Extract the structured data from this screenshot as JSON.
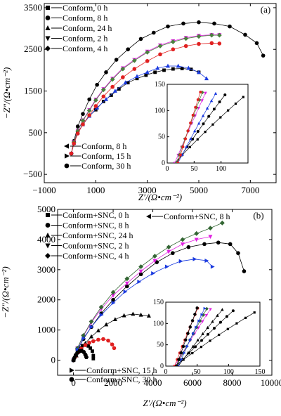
{
  "chart_data": [
    {
      "type": "scatter",
      "panel_label": "(a)",
      "xlabel": "Z′/(Ω•cm⁻²)",
      "ylabel": "−Z″/(Ω•cm⁻²)",
      "xlim": [
        -1000,
        8000
      ],
      "ylim": [
        -700,
        3600
      ],
      "xticks": [
        "−1000",
        "1000",
        "3000",
        "5000",
        "7000"
      ],
      "xtick_values": [
        -1000,
        1000,
        3000,
        5000,
        7000
      ],
      "yticks": [
        "−500",
        "500",
        "1500",
        "2500",
        "3500"
      ],
      "ytick_values": [
        -500,
        500,
        1500,
        2500,
        3500
      ],
      "series": [
        {
          "name": "Conform, 0 h",
          "color": "#000000",
          "marker": "square",
          "x": [
            50,
            150,
            300,
            500,
            750,
            1000,
            1300,
            1600,
            1900,
            2250,
            2600,
            2950,
            3300,
            3650,
            4000,
            4350,
            4700,
            5000
          ],
          "y": [
            0,
            250,
            500,
            700,
            900,
            1050,
            1250,
            1400,
            1550,
            1700,
            1800,
            1880,
            1950,
            2000,
            2030,
            2040,
            2020,
            1950
          ]
        },
        {
          "name": "Conform, 8 h",
          "color": "#000000",
          "marker": "circle",
          "x": [
            50,
            150,
            300,
            500,
            750,
            1050,
            1400,
            1800,
            2250,
            2750,
            3250,
            3800,
            4400,
            5000,
            5600,
            6200,
            6800,
            7250,
            7500
          ],
          "y": [
            0,
            300,
            650,
            950,
            1300,
            1650,
            1950,
            2250,
            2500,
            2750,
            2900,
            3050,
            3120,
            3150,
            3120,
            3050,
            2850,
            2650,
            2350
          ]
        },
        {
          "name": "Conform, 24 h",
          "color": "#1a3adf",
          "marker": "triangle-up",
          "x": [
            50,
            150,
            300,
            500,
            750,
            1050,
            1400,
            1750,
            2150,
            2600,
            3000,
            3400,
            3800,
            4200,
            4600,
            5000,
            5300
          ],
          "y": [
            0,
            250,
            500,
            700,
            900,
            1100,
            1300,
            1500,
            1700,
            1850,
            1950,
            2050,
            2100,
            2100,
            2050,
            1950,
            1800
          ]
        },
        {
          "name": "Conform, 2 h",
          "color": "#e020e0",
          "marker": "triangle-down",
          "x": [
            50,
            150,
            300,
            500,
            750,
            1000,
            1300,
            1650,
            2050,
            2500,
            3000,
            3500,
            4000,
            4500,
            5000,
            5500,
            5800
          ],
          "y": [
            0,
            280,
            550,
            800,
            1050,
            1300,
            1550,
            1800,
            2050,
            2250,
            2450,
            2600,
            2700,
            2780,
            2830,
            2850,
            2850
          ]
        },
        {
          "name": "Conform, 4 h",
          "color": "#4a7f3e",
          "marker": "diamond",
          "x": [
            50,
            150,
            300,
            500,
            750,
            1000,
            1300,
            1650,
            2050,
            2500,
            3000,
            3500,
            4000,
            4500,
            5000,
            5500,
            5800
          ],
          "y": [
            0,
            270,
            540,
            790,
            1030,
            1280,
            1530,
            1780,
            2030,
            2230,
            2430,
            2580,
            2680,
            2760,
            2810,
            2840,
            2840
          ]
        },
        {
          "name": "Conform, 15 h",
          "color": "#e02020",
          "marker": "circle",
          "x": [
            50,
            150,
            300,
            500,
            750,
            1000,
            1300,
            1650,
            2050,
            2500,
            3000,
            3500,
            4000,
            4500,
            5000,
            5500,
            5800
          ],
          "y": [
            0,
            240,
            480,
            700,
            920,
            1140,
            1370,
            1600,
            1830,
            2030,
            2220,
            2380,
            2500,
            2580,
            2630,
            2650,
            2640
          ]
        }
      ],
      "legend_top": [
        "Conform, 0 h",
        "Conform, 8 h",
        "Conform, 24 h",
        "Conform, 2 h",
        "Conform, 4 h"
      ],
      "legend_bottom": [
        "Conform, 8 h",
        "Conform, 15 h",
        "Conform, 30 h"
      ],
      "inset": {
        "xlim": [
          0,
          150
        ],
        "ylim": [
          0,
          150
        ],
        "xticks": [
          "0",
          "50",
          "100"
        ],
        "xtick_values": [
          0,
          50,
          100
        ],
        "yticks": [
          "0",
          "50",
          "100",
          "150"
        ],
        "ytick_values": [
          0,
          50,
          100,
          150
        ]
      }
    },
    {
      "type": "scatter",
      "panel_label": "(b)",
      "xlabel": "Z′/(Ω•cm⁻²)",
      "ylabel": "−Z″/(Ω•cm⁻²)",
      "xlim": [
        -800,
        10000
      ],
      "ylim": [
        -500,
        5000
      ],
      "xticks": [
        "0",
        "2000",
        "4000",
        "6000",
        "8000",
        "10000"
      ],
      "xtick_values": [
        0,
        2000,
        4000,
        6000,
        8000,
        10000
      ],
      "yticks": [
        "0",
        "1000",
        "2000",
        "3000",
        "4000",
        "5000"
      ],
      "ytick_values": [
        0,
        1000,
        2000,
        3000,
        4000,
        5000
      ],
      "series": [
        {
          "name": "Conform+SNC, 0 h",
          "color": "#000000",
          "marker": "square",
          "x": [
            0,
            100,
            200,
            300,
            450,
            600,
            750,
            850,
            950,
            1000,
            1000
          ],
          "y": [
            0,
            150,
            300,
            400,
            480,
            500,
            470,
            400,
            300,
            150,
            50
          ]
        },
        {
          "name": "Conform+SNC, 8 h",
          "color": "#000000",
          "marker": "circle",
          "x": [
            0,
            200,
            500,
            900,
            1400,
            2000,
            2700,
            3400,
            4200,
            5000,
            5800,
            6600,
            7300,
            7900,
            8300,
            8600
          ],
          "y": [
            0,
            350,
            700,
            1100,
            1550,
            2000,
            2450,
            2850,
            3250,
            3550,
            3750,
            3850,
            3900,
            3850,
            3550,
            2950
          ]
        },
        {
          "name": "Conform+SNC, 24 h",
          "color": "#000000",
          "marker": "triangle-up",
          "x": [
            0,
            150,
            350,
            600,
            900,
            1250,
            1650,
            2100,
            2550,
            3000,
            3400,
            3800
          ],
          "y": [
            0,
            150,
            350,
            560,
            780,
            980,
            1180,
            1350,
            1480,
            1530,
            1500,
            1470
          ]
        },
        {
          "name": "Conform+SNC, 2 h",
          "color": "#e020e0",
          "marker": "triangle-down",
          "x": [
            0,
            200,
            500,
            900,
            1400,
            2000,
            2700,
            3400,
            4100,
            4800,
            5500,
            6200,
            6900
          ],
          "y": [
            0,
            400,
            800,
            1250,
            1700,
            2150,
            2550,
            2950,
            3300,
            3600,
            3850,
            4000,
            4100
          ]
        },
        {
          "name": "Conform+SNC, 4 h",
          "color": "#336633",
          "marker": "diamond",
          "x": [
            0,
            200,
            500,
            900,
            1400,
            2000,
            2700,
            3400,
            4100,
            4800,
            5500,
            6200,
            6900,
            7500
          ],
          "y": [
            0,
            400,
            820,
            1280,
            1760,
            2250,
            2700,
            3100,
            3450,
            3750,
            4000,
            4200,
            4380,
            4550
          ]
        },
        {
          "name": "Conform+SNC, 8 h (blue)",
          "color": "#1a3adf",
          "marker": "triangle-right",
          "x": [
            0,
            200,
            500,
            900,
            1400,
            2000,
            2600,
            3300,
            4000,
            4700,
            5400,
            6100,
            6700,
            7000
          ],
          "y": [
            0,
            350,
            720,
            1100,
            1500,
            1900,
            2270,
            2600,
            2880,
            3100,
            3280,
            3350,
            3300,
            3100
          ]
        },
        {
          "name": "Conform+SNC, 15 h",
          "color": "#e02020",
          "marker": "circle",
          "x": [
            0,
            100,
            250,
            400,
            600,
            800,
            1000,
            1250,
            1500,
            1750,
            1950,
            2050
          ],
          "y": [
            0,
            120,
            260,
            380,
            500,
            580,
            630,
            680,
            700,
            650,
            520,
            400
          ]
        },
        {
          "name": "Conform+SNC, 30 h",
          "color": "#000000",
          "marker": "hexagon",
          "x": [
            0,
            50,
            120,
            200,
            300,
            420,
            520,
            600,
            650
          ],
          "y": [
            0,
            80,
            170,
            250,
            300,
            310,
            270,
            180,
            100
          ]
        }
      ],
      "legend_top": [
        "Conform+SNC, 0 h",
        "Conform+SNC, 8 h",
        "Conform+SNC, 24 h",
        "Conform+SNC, 2 h",
        "Conform+SNC, 4 h"
      ],
      "legend_right": "Conform+SNC, 8 h",
      "legend_bottom": [
        "Conform+SNC, 15 h",
        "Conform+SNC, 30 h"
      ],
      "inset": {
        "xlim": [
          0,
          150
        ],
        "ylim": [
          0,
          150
        ],
        "xticks": [
          "0",
          "50",
          "100",
          "150"
        ],
        "xtick_values": [
          0,
          50,
          100,
          150
        ],
        "yticks": [
          "0",
          "50",
          "100",
          "150"
        ],
        "ytick_values": [
          0,
          50,
          100,
          150
        ]
      }
    }
  ]
}
